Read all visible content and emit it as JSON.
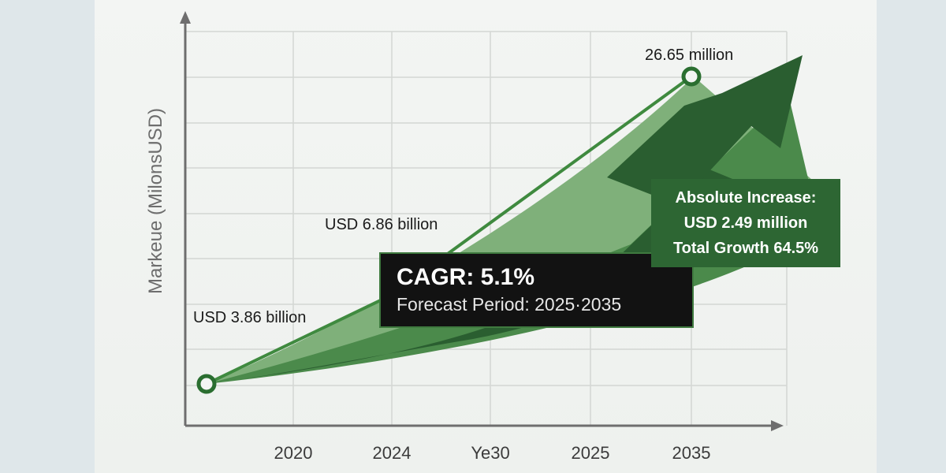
{
  "chart_data": {
    "type": "line",
    "title": "",
    "ylabel": "Markeue (MilonsUSD)",
    "xlabel": "",
    "categories": [
      "2020",
      "2024",
      "Ye30",
      "2025",
      "2035"
    ],
    "grid": true,
    "series": [
      {
        "points": [
          {
            "label": "USD 3.86 billion"
          },
          {
            "label": "USD 6.86 billion"
          },
          {
            "label": "26.65 million"
          }
        ]
      }
    ],
    "annotations": {
      "cagr_title": "CAGR: 5.1%",
      "forecast": "Forecast Period: 2025·2035",
      "increase_title": "Absolute Increase:",
      "increase_value": "USD 2.49 million",
      "total_growth": "Total Growth 64.5%"
    }
  },
  "colors": {
    "line": "#3f8a3f",
    "area_light": "#7fb07a",
    "area_mid": "#4b8a4b",
    "arrow": "#2a5e30",
    "axis": "#6e6e6e",
    "grid": "#d3d6d3"
  }
}
